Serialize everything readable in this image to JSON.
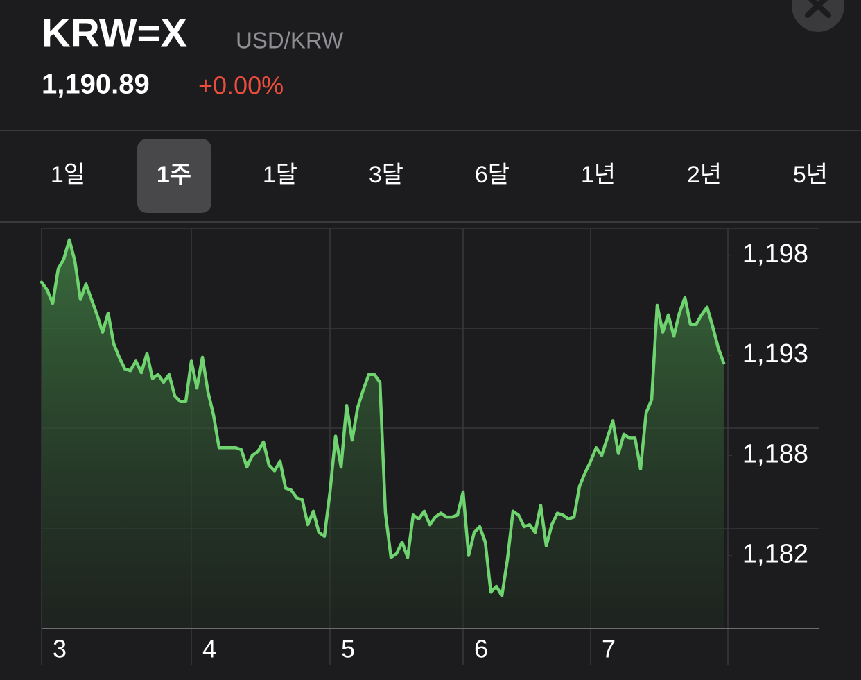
{
  "header": {
    "symbol": "KRW=X",
    "name": "USD/KRW",
    "price": "1,190.89",
    "change": "+0.00%"
  },
  "tabs": [
    "1일",
    "1주",
    "1달",
    "3달",
    "6달",
    "1년",
    "2년",
    "5년"
  ],
  "selected_tab": 1,
  "chart_data": {
    "type": "line",
    "color": "#6fd46f",
    "fill": true,
    "x": [
      0,
      1,
      2,
      3,
      4,
      5,
      6,
      7,
      8,
      9,
      10,
      11,
      12,
      13,
      14,
      15,
      16,
      17,
      18,
      19,
      20,
      21,
      22,
      23,
      24,
      25,
      26,
      27,
      28,
      29,
      30,
      31,
      32,
      33,
      34,
      35,
      36,
      37,
      38,
      39,
      40,
      41,
      42,
      43,
      44,
      45,
      46,
      47,
      48,
      49,
      50,
      51,
      52,
      53,
      54,
      55,
      56,
      57,
      58,
      59,
      60,
      61,
      62,
      63,
      64,
      65,
      66,
      67,
      68,
      69,
      70,
      71,
      72,
      73,
      74,
      75,
      76,
      77,
      78,
      79,
      80,
      81,
      82,
      83,
      84,
      85,
      86,
      87,
      88,
      89,
      90,
      91,
      92,
      93,
      94,
      95,
      96,
      97,
      98,
      99,
      100,
      101,
      102,
      103,
      104,
      105,
      106,
      107,
      108,
      109,
      110,
      111,
      112,
      113,
      114,
      115,
      116,
      117,
      118,
      119,
      120,
      121,
      122,
      123
    ],
    "values": [
      1196.6,
      1196.2,
      1195.5,
      1197.3,
      1197.8,
      1198.8,
      1197.7,
      1195.7,
      1196.5,
      1195.7,
      1194.9,
      1194.0,
      1195.0,
      1193.4,
      1192.7,
      1192.1,
      1192.0,
      1192.5,
      1191.9,
      1192.9,
      1191.6,
      1191.8,
      1191.4,
      1191.8,
      1190.7,
      1190.4,
      1190.4,
      1192.5,
      1191.1,
      1192.7,
      1190.9,
      1189.7,
      1188.0,
      1188.0,
      1188.0,
      1188.0,
      1187.9,
      1187.0,
      1187.6,
      1187.8,
      1188.3,
      1187.1,
      1186.8,
      1187.3,
      1185.9,
      1185.8,
      1185.4,
      1185.3,
      1184.0,
      1184.7,
      1183.6,
      1183.4,
      1185.7,
      1188.6,
      1187.0,
      1190.2,
      1188.4,
      1190.1,
      1191.0,
      1191.8,
      1191.8,
      1191.4,
      1184.6,
      1182.3,
      1182.5,
      1183.1,
      1182.3,
      1184.5,
      1184.3,
      1184.7,
      1184.0,
      1184.4,
      1184.6,
      1184.4,
      1184.4,
      1184.5,
      1185.7,
      1182.4,
      1183.6,
      1183.9,
      1183.1,
      1180.5,
      1180.8,
      1180.3,
      1182.2,
      1184.7,
      1184.5,
      1183.9,
      1184.0,
      1183.6,
      1185.0,
      1182.9,
      1184.0,
      1184.6,
      1184.5,
      1184.3,
      1184.4,
      1186.0,
      1186.7,
      1187.3,
      1188.0,
      1187.6,
      1188.5,
      1189.4,
      1187.7,
      1188.7,
      1188.5,
      1188.5,
      1186.9,
      1189.8,
      1190.5,
      1195.4,
      1194.0,
      1194.9,
      1193.8,
      1195.0,
      1195.8,
      1194.4,
      1194.4,
      1194.9,
      1195.3,
      1194.3,
      1193.2,
      1192.4
    ],
    "xlim": [
      0,
      140.25
    ],
    "ylim": [
      1178.6,
      1199.4
    ],
    "xticks": [
      {
        "value": 0,
        "label": "3"
      },
      {
        "value": 27,
        "label": "4"
      },
      {
        "value": 52,
        "label": "5"
      },
      {
        "value": 76,
        "label": "6"
      },
      {
        "value": 99,
        "label": "7"
      }
    ],
    "yticks": [
      {
        "value": 1198.0,
        "label": "1,198"
      },
      {
        "value": 1192.8,
        "label": "1,193"
      },
      {
        "value": 1187.6,
        "label": "1,188"
      },
      {
        "value": 1182.4,
        "label": "1,182"
      }
    ]
  }
}
